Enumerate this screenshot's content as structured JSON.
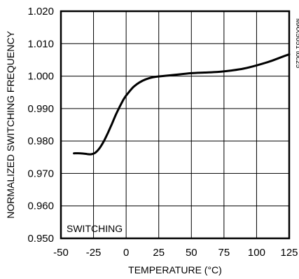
{
  "chart_data": {
    "type": "line",
    "title": "",
    "xlabel": "TEMPERATURE (°C)",
    "ylabel": "NORMALIZED SWITCHING FREQUENCY",
    "xlim": [
      -50,
      125
    ],
    "ylim": [
      0.95,
      1.02
    ],
    "xticks": [
      "-50",
      "-25",
      "0",
      "25",
      "50",
      "75",
      "100",
      "125"
    ],
    "yticks": [
      "0.950",
      "0.960",
      "0.970",
      "0.980",
      "0.990",
      "1.000",
      "1.010",
      "1.020"
    ],
    "grid": true,
    "annotation": "SWITCHING",
    "figure_id": "MAX5051 toc25",
    "series": [
      {
        "x": [
          -40,
          -35,
          -30,
          -27,
          -24,
          -22,
          -20,
          -17,
          -14,
          -11,
          -8,
          -5,
          -2,
          0,
          3,
          6,
          10,
          15,
          20,
          25,
          30,
          40,
          50,
          60,
          70,
          80,
          90,
          100,
          110,
          120,
          125
        ],
        "y": [
          0.9762,
          0.9762,
          0.976,
          0.9759,
          0.9763,
          0.977,
          0.978,
          0.98,
          0.9825,
          0.9852,
          0.988,
          0.9905,
          0.9928,
          0.994,
          0.9955,
          0.9968,
          0.998,
          0.999,
          0.9996,
          0.9999,
          1.0001,
          1.0005,
          1.0009,
          1.0011,
          1.0013,
          1.0017,
          1.0023,
          1.0033,
          1.0045,
          1.006,
          1.0067
        ]
      }
    ]
  }
}
